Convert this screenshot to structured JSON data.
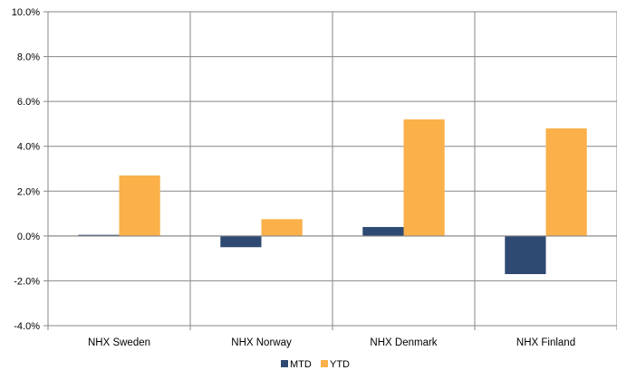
{
  "chart_data": {
    "type": "bar",
    "categories": [
      "NHX Sweden",
      "NHX Norway",
      "NHX Denmark",
      "NHX Finland"
    ],
    "series": [
      {
        "name": "MTD",
        "color": "#2e4a72",
        "values": [
          0.05,
          -0.5,
          0.4,
          -1.7
        ]
      },
      {
        "name": "YTD",
        "color": "#fbb04a",
        "values": [
          2.7,
          0.75,
          5.2,
          4.8
        ]
      }
    ],
    "ylim": [
      -4,
      10
    ],
    "yticks": [
      10,
      8,
      6,
      4,
      2,
      0,
      -2,
      -4
    ],
    "ytick_labels": [
      "10.0%",
      "8.0%",
      "6.0%",
      "4.0%",
      "2.0%",
      "0.0%",
      "-2.0%",
      "-4.0%"
    ],
    "title": "",
    "xlabel": "",
    "ylabel": "",
    "grid": true,
    "legend": {
      "position": "bottom",
      "entries": [
        "MTD",
        "YTD"
      ]
    }
  }
}
